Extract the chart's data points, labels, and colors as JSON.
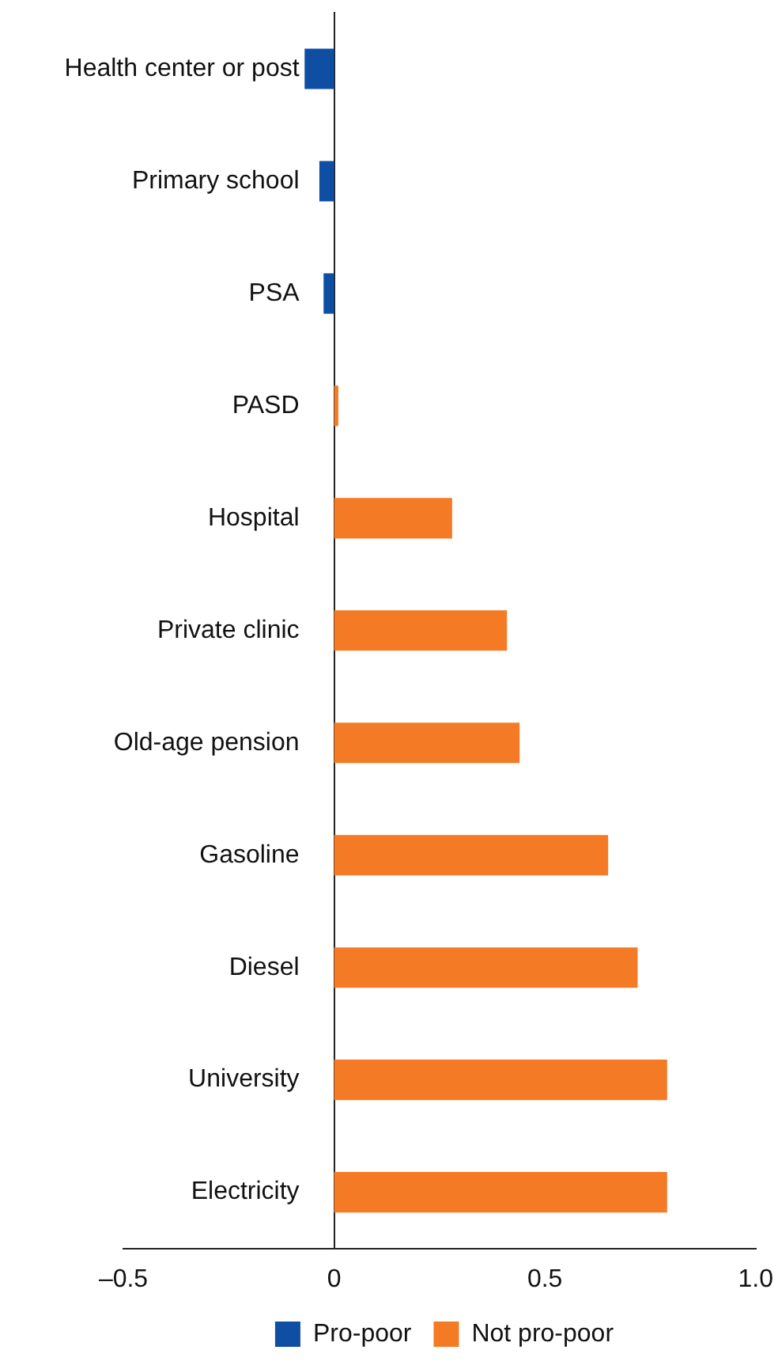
{
  "chart_data": {
    "type": "bar",
    "orientation": "horizontal",
    "categories": [
      "Health center or post",
      "Primary school",
      "PSA",
      "PASD",
      "Hospital",
      "Private clinic",
      "Old-age pension",
      "Gasoline",
      "Diesel",
      "University",
      "Electricity"
    ],
    "series": [
      {
        "name": "Pro-poor",
        "color": "#0f4fa3",
        "values": [
          -0.07,
          -0.035,
          -0.025,
          null,
          null,
          null,
          null,
          null,
          null,
          null,
          null
        ]
      },
      {
        "name": "Not pro-poor",
        "color": "#f47a25",
        "values": [
          null,
          null,
          null,
          0.01,
          0.28,
          0.41,
          0.44,
          0.65,
          0.72,
          0.79,
          0.79
        ]
      }
    ],
    "xlim": [
      -0.5,
      1.0
    ],
    "xticks": [
      {
        "value": -0.5,
        "label": "–0.5"
      },
      0,
      0.5,
      {
        "value": 1.0,
        "label": "1.0"
      }
    ],
    "grid": false,
    "legend": "bottom"
  }
}
